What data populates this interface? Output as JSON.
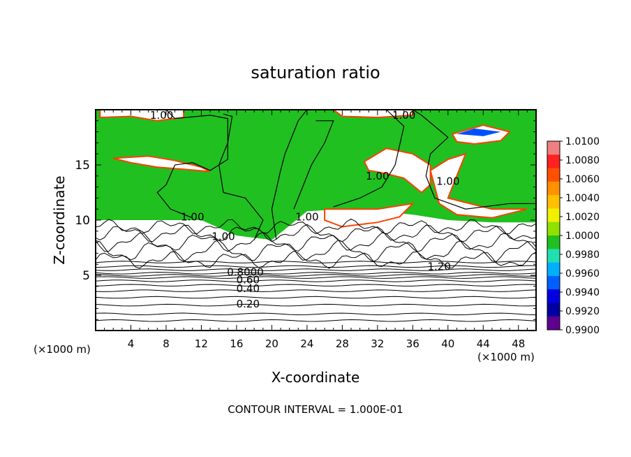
{
  "chart_data": {
    "type": "heatmap",
    "title": "saturation ratio",
    "xlabel": "X-coordinate",
    "ylabel": "Z-coordinate",
    "x_unit_left": "(×1000 m)",
    "x_unit_right": "(×1000 m)",
    "xlim": [
      0,
      50
    ],
    "ylim": [
      0,
      20
    ],
    "x_ticks": [
      {
        "value": 4,
        "label": "4"
      },
      {
        "value": 8,
        "label": "8"
      },
      {
        "value": 12,
        "label": "12"
      },
      {
        "value": 16,
        "label": "16"
      },
      {
        "value": 20,
        "label": "20"
      },
      {
        "value": 24,
        "label": "24"
      },
      {
        "value": 28,
        "label": "28"
      },
      {
        "value": 32,
        "label": "32"
      },
      {
        "value": 36,
        "label": "36"
      },
      {
        "value": 40,
        "label": "40"
      },
      {
        "value": 44,
        "label": "44"
      },
      {
        "value": 48,
        "label": "48"
      }
    ],
    "y_ticks": [
      {
        "value": 5,
        "label": "5"
      },
      {
        "value": 10,
        "label": "10"
      },
      {
        "value": 15,
        "label": "15"
      }
    ],
    "colorbar": {
      "labels": [
        "1.0100",
        "1.0080",
        "1.0060",
        "1.0040",
        "1.0020",
        "1.0000",
        "0.9980",
        "0.9960",
        "0.9940",
        "0.9920",
        "0.9900"
      ],
      "colors": [
        "#f08080",
        "#ff2020",
        "#ff5000",
        "#ff9000",
        "#ffc000",
        "#f0f000",
        "#90e000",
        "#20c020",
        "#20e0b0",
        "#00b0ff",
        "#0060ff",
        "#0000e0",
        "#0000a0",
        "#600090"
      ]
    },
    "contour_labels": [
      {
        "text": "1.00",
        "x": 7.5,
        "y": 19.5
      },
      {
        "text": "1.00",
        "x": 35,
        "y": 19.5
      },
      {
        "text": "1.00",
        "x": 11,
        "y": 10.3
      },
      {
        "text": "1.00",
        "x": 14.5,
        "y": 8.5
      },
      {
        "text": "1.00",
        "x": 24,
        "y": 10.3
      },
      {
        "text": "1.00",
        "x": 32,
        "y": 14
      },
      {
        "text": "1.00",
        "x": 40,
        "y": 13.5
      },
      {
        "text": "1.20",
        "x": 39,
        "y": 5.8
      },
      {
        "text": "0.8000",
        "x": 17,
        "y": 5.3
      },
      {
        "text": "0.60",
        "x": 17.3,
        "y": 4.6
      },
      {
        "text": "0.40",
        "x": 17.3,
        "y": 3.8
      },
      {
        "text": "0.20",
        "x": 17.3,
        "y": 2.4
      }
    ],
    "footer": "CONTOUR INTERVAL = 1.000E-01"
  }
}
